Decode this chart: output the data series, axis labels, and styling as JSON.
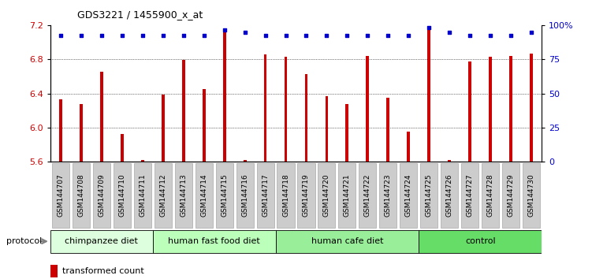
{
  "title": "GDS3221 / 1455900_x_at",
  "samples": [
    "GSM144707",
    "GSM144708",
    "GSM144709",
    "GSM144710",
    "GSM144711",
    "GSM144712",
    "GSM144713",
    "GSM144714",
    "GSM144715",
    "GSM144716",
    "GSM144717",
    "GSM144718",
    "GSM144719",
    "GSM144720",
    "GSM144721",
    "GSM144722",
    "GSM144723",
    "GSM144724",
    "GSM144725",
    "GSM144726",
    "GSM144727",
    "GSM144728",
    "GSM144729",
    "GSM144730"
  ],
  "bar_values": [
    6.33,
    6.28,
    6.65,
    5.93,
    5.62,
    6.39,
    6.79,
    6.45,
    7.15,
    5.62,
    6.86,
    6.83,
    6.63,
    6.37,
    6.28,
    6.84,
    6.35,
    5.95,
    7.18,
    5.62,
    6.77,
    6.83,
    6.84,
    6.87
  ],
  "percentile_values": [
    7.08,
    7.08,
    7.08,
    7.08,
    7.08,
    7.08,
    7.08,
    7.08,
    7.14,
    7.12,
    7.08,
    7.08,
    7.08,
    7.08,
    7.08,
    7.08,
    7.08,
    7.08,
    7.17,
    7.12,
    7.08,
    7.08,
    7.08,
    7.12
  ],
  "groups": [
    {
      "label": "chimpanzee diet",
      "start": 0,
      "end": 5,
      "color": "#ddffdd"
    },
    {
      "label": "human fast food diet",
      "start": 5,
      "end": 11,
      "color": "#bbffbb"
    },
    {
      "label": "human cafe diet",
      "start": 11,
      "end": 18,
      "color": "#99ee99"
    },
    {
      "label": "control",
      "start": 18,
      "end": 24,
      "color": "#66dd66"
    }
  ],
  "ylim": [
    5.6,
    7.2
  ],
  "yticks": [
    5.6,
    6.0,
    6.4,
    6.8,
    7.2
  ],
  "bar_color": "#cc0000",
  "dot_color": "#0000cc",
  "axis_label_color_left": "#cc0000",
  "axis_label_color_right": "#0000cc",
  "right_yticks": [
    0,
    25,
    50,
    75,
    100
  ],
  "right_ylabels": [
    "0",
    "25",
    "50",
    "75",
    "100%"
  ],
  "tick_box_color": "#cccccc",
  "protocol_arrow_color": "#888888"
}
